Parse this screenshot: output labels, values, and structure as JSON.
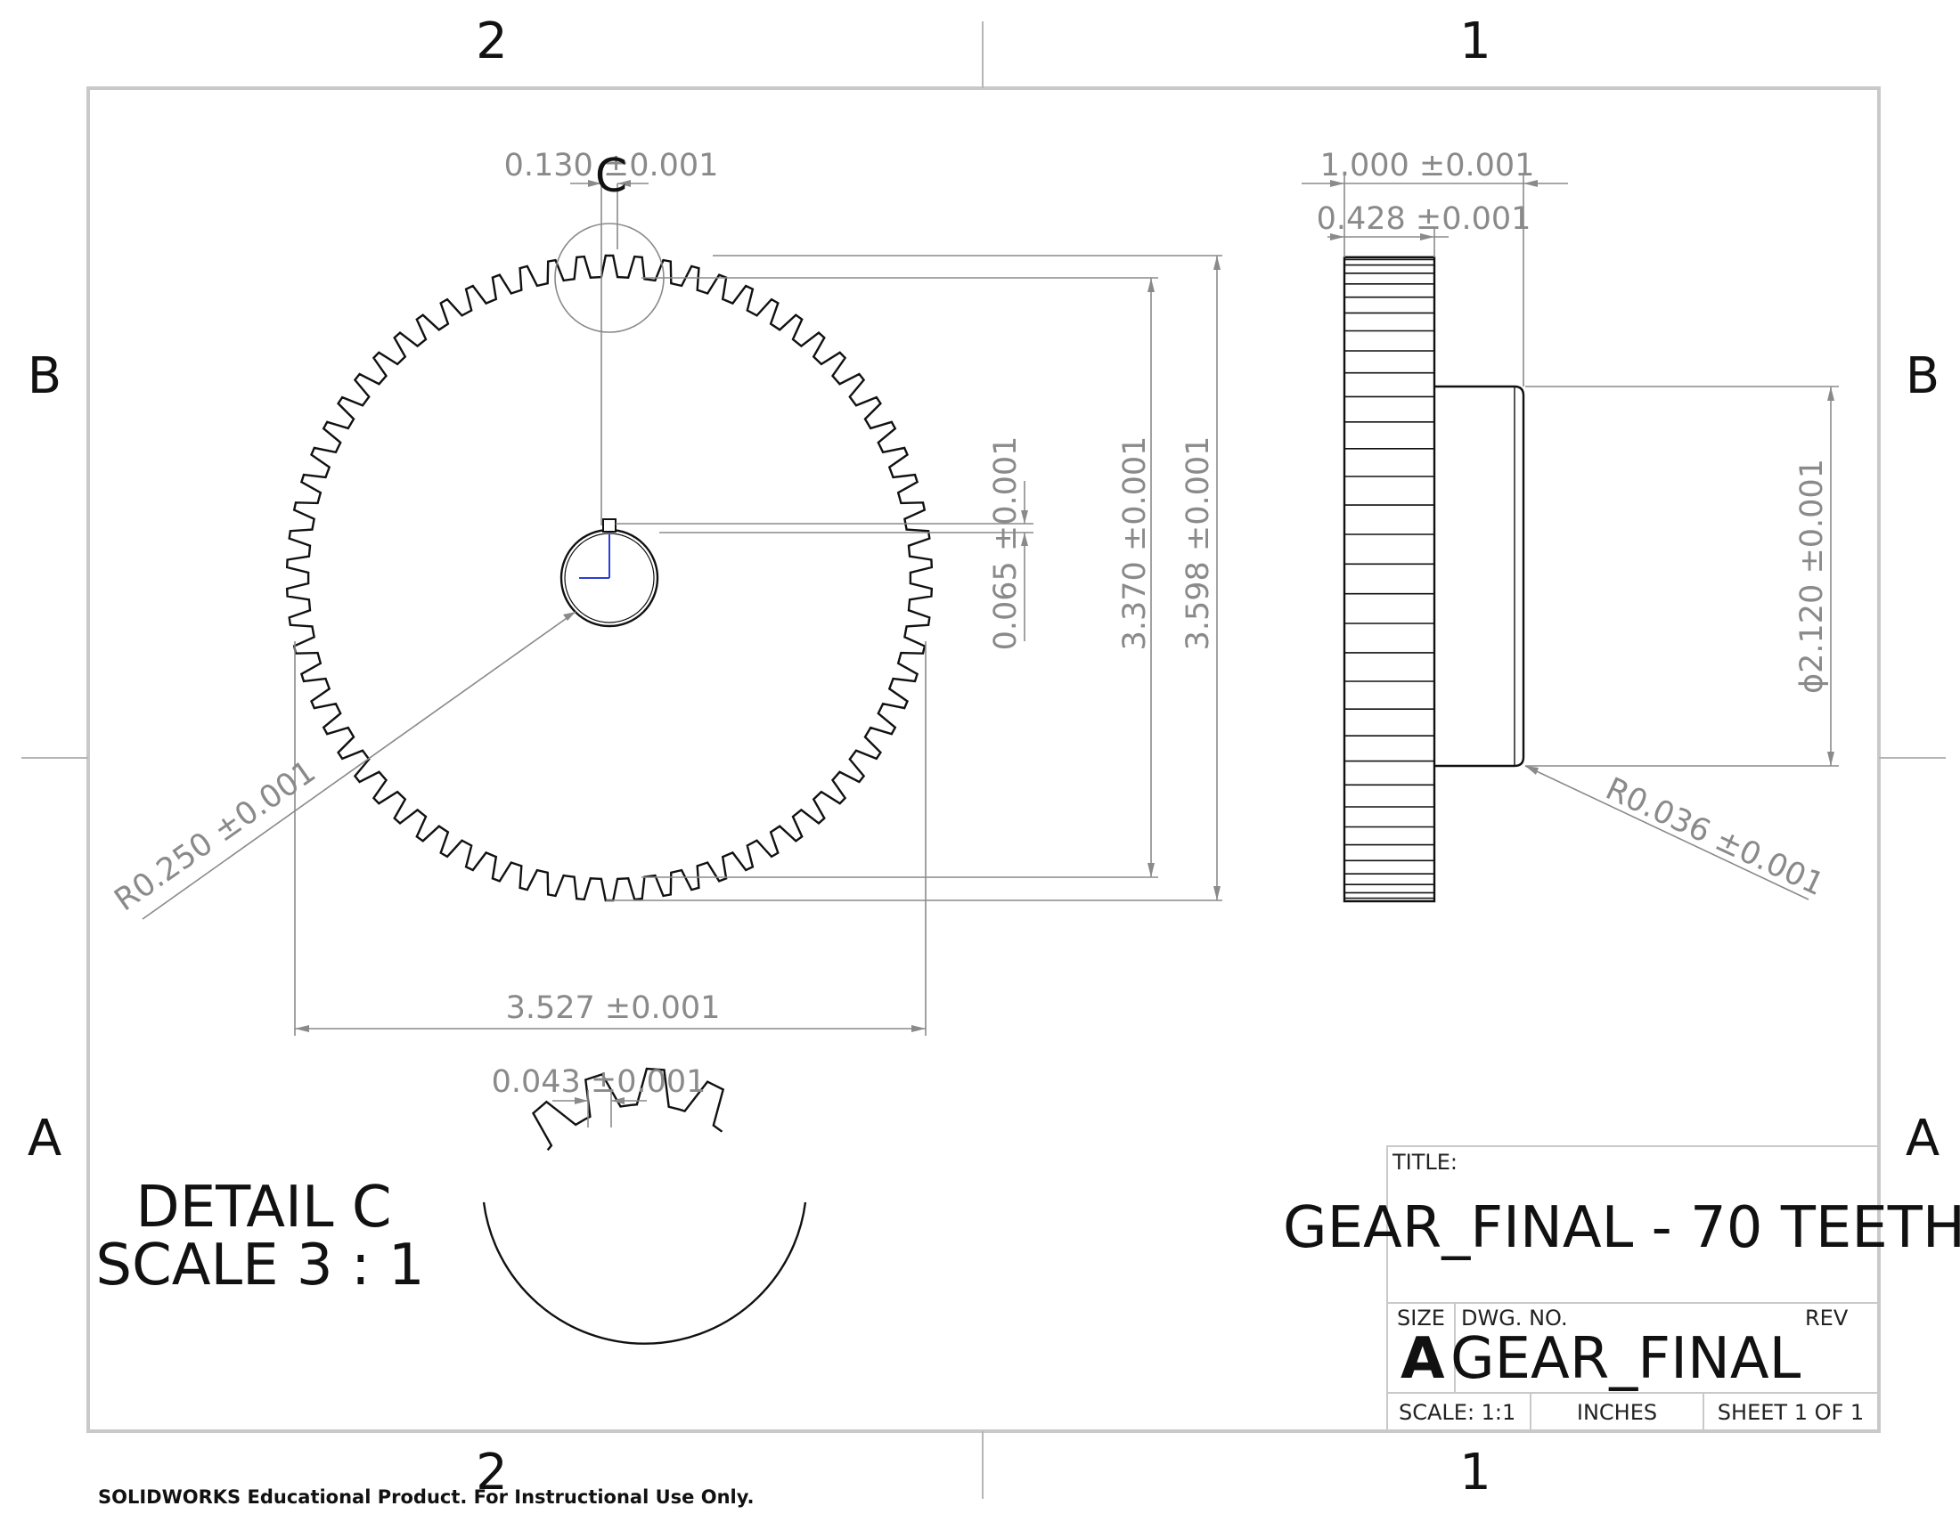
{
  "zones": {
    "top": [
      "2",
      "1"
    ],
    "bottom": [
      "2",
      "1"
    ],
    "left": [
      "B",
      "A"
    ],
    "right": [
      "B",
      "A"
    ]
  },
  "dimensions": {
    "tooth_width": "0.130 ±0.001",
    "detail_label": "C",
    "root_diameter": "3.370 ±0.001",
    "outer_diameter": "3.598 ±0.001",
    "keyway": "0.065 ±0.001",
    "bore_radius": "R0.250 ±0.001",
    "overall_width": "3.527 ±0.001",
    "face_width": "1.000 ±0.001",
    "hub_offset": "0.428 ±0.001",
    "hub_diameter": "ϕ2.120 ±0.001",
    "fillet_radius": "R0.036 ±0.001",
    "detail_tooth_tip": "0.043 ±0.001"
  },
  "gear": {
    "teeth": 70
  },
  "detail": {
    "title": "DETAIL C",
    "scale": "SCALE 3 : 1"
  },
  "title_block": {
    "title_label": "TITLE:",
    "title": "GEAR_FINAL - 70 TEETH",
    "size_label": "SIZE",
    "size": "A",
    "dwg_no_label": "DWG.  NO.",
    "dwg_no": "GEAR_FINAL",
    "rev_label": "REV",
    "scale": "SCALE: 1:1",
    "units": "INCHES",
    "sheet": "SHEET 1 OF 1"
  },
  "footer_note": "SOLIDWORKS Educational Product. For Instructional Use Only."
}
